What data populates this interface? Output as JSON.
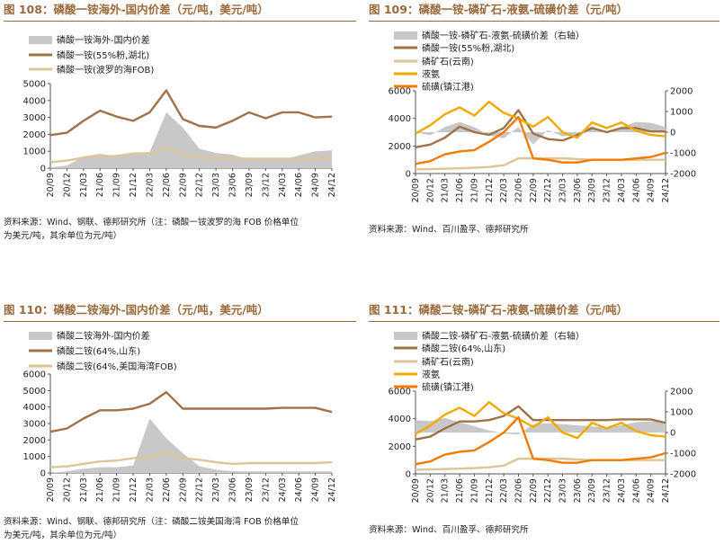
{
  "colors": {
    "gray": "#C8C8C8",
    "brown": "#A07248",
    "tan": "#DEC598",
    "gold": "#F2A900",
    "orange": "#F47B00",
    "title": "#9B6A3C",
    "axis": "#555555"
  },
  "panels": [
    {
      "title": "图 108：磷酸一铵海外-国内价差（元/吨，美元/吨）",
      "note": [
        "资料来源：Wind、钢联、德邦研究所（注：磷酸一铵波罗的海 FOB 价格单位",
        "为美元/吨，其余单位为元/吨）"
      ],
      "chart_data": {
        "type": "area+line",
        "x": [
          "20/09",
          "20/12",
          "21/03",
          "21/06",
          "21/09",
          "21/12",
          "22/03",
          "22/06",
          "22/09",
          "22/12",
          "23/03",
          "23/06",
          "23/09",
          "23/12",
          "24/03",
          "24/06",
          "24/09",
          "24/12"
        ],
        "ylim": [
          0,
          5000
        ],
        "yticks": [
          0,
          1000,
          2000,
          3000,
          4000,
          5000
        ],
        "series": [
          {
            "name": "磷酸一铵海外-国内价差",
            "kind": "area",
            "color": "#C8C8C8",
            "axis": "left",
            "values": [
              50,
              150,
              700,
              850,
              700,
              900,
              950,
              3300,
              2400,
              1150,
              900,
              800,
              500,
              600,
              500,
              750,
              1000,
              1050
            ]
          },
          {
            "name": "磷酸一铵(55%粉,湖北)",
            "kind": "line",
            "color": "#A07248",
            "axis": "left",
            "values": [
              1950,
              2100,
              2800,
              3400,
              3050,
              2800,
              3300,
              4600,
              2900,
              2500,
              2400,
              2800,
              3300,
              2950,
              3300,
              3300,
              3000,
              3050
            ]
          },
          {
            "name": "磷酸一铵(波罗的海FOB)",
            "kind": "line",
            "color": "#DEC598",
            "axis": "left",
            "values": [
              350,
              450,
              620,
              680,
              720,
              860,
              880,
              1230,
              820,
              650,
              560,
              600,
              560,
              560,
              560,
              560,
              560,
              580
            ]
          }
        ]
      }
    },
    {
      "title": "图 109：磷酸一铵-磷矿石-液氨-硫磺价差（元/吨）",
      "note": [
        "资料来源：Wind、百川盈孚、德邦研究所"
      ],
      "chart_data": {
        "type": "area+line",
        "x": [
          "20/09",
          "20/12",
          "21/03",
          "21/06",
          "21/09",
          "21/12",
          "22/03",
          "22/06",
          "22/09",
          "22/12",
          "23/03",
          "23/06",
          "23/09",
          "23/12",
          "24/03",
          "24/06",
          "24/09",
          "24/12"
        ],
        "ylim": [
          0,
          6000
        ],
        "yticks": [
          0,
          2000,
          4000,
          6000
        ],
        "y2lim": [
          -2000,
          2000
        ],
        "y2ticks": [
          -2000,
          -1000,
          0,
          1000,
          2000
        ],
        "series": [
          {
            "name": "磷酸一铵-磷矿石-液氨-硫磺价差（右轴）",
            "kind": "area",
            "color": "#C8C8C8",
            "axis": "right",
            "values": [
              0,
              -150,
              250,
              500,
              250,
              -150,
              -300,
              250,
              -600,
              100,
              -200,
              -100,
              300,
              -50,
              250,
              500,
              450,
              250
            ]
          },
          {
            "name": "磷酸一铵(55%粉,湖北)",
            "kind": "line",
            "color": "#A07248",
            "axis": "left",
            "values": [
              1900,
              2100,
              2600,
              3400,
              3000,
              2800,
              3300,
              4600,
              2900,
              2500,
              2400,
              2800,
              3300,
              3000,
              3300,
              3300,
              3050,
              3050
            ]
          },
          {
            "name": "磷矿石(云南)",
            "kind": "line",
            "color": "#DEC598",
            "axis": "left",
            "values": [
              300,
              320,
              350,
              380,
              420,
              480,
              600,
              1100,
              1100,
              1100,
              1100,
              1050,
              1000,
              1000,
              1000,
              1000,
              1000,
              1000
            ]
          },
          {
            "name": "液氨",
            "kind": "line",
            "color": "#F2A900",
            "axis": "left",
            "values": [
              2900,
              3500,
              4300,
              4800,
              4200,
              5200,
              4400,
              4000,
              3400,
              4100,
              3000,
              2600,
              3700,
              3300,
              3700,
              3100,
              2800,
              2700
            ]
          },
          {
            "name": "硫磺(镇江港)",
            "kind": "line",
            "color": "#F47B00",
            "axis": "left",
            "values": [
              700,
              900,
              1400,
              1600,
              1700,
              2300,
              3000,
              4100,
              1100,
              1000,
              800,
              800,
              1000,
              1000,
              1000,
              1100,
              1200,
              1500
            ]
          }
        ]
      }
    },
    {
      "title": "图 110：磷酸二铵海外-国内价差（元/吨，美元/吨）",
      "note": [
        "资料来源：Wind、钢联、德邦研究所（注：磷酸二铵美国海湾 FOB 价格单位",
        "为美元/吨，其余单位为元/吨）"
      ],
      "chart_data": {
        "type": "area+line",
        "x": [
          "20/09",
          "20/12",
          "21/03",
          "21/06",
          "21/09",
          "21/12",
          "22/03",
          "22/06",
          "22/09",
          "22/12",
          "23/03",
          "23/06",
          "23/09",
          "23/12",
          "24/03",
          "24/06",
          "24/09",
          "24/12"
        ],
        "ylim": [
          0,
          6000
        ],
        "yticks": [
          0,
          1000,
          2000,
          3000,
          4000,
          5000,
          6000
        ],
        "series": [
          {
            "name": "磷酸二铵海外-国内价差",
            "kind": "area",
            "color": "#C8C8C8",
            "axis": "left",
            "values": [
              0,
              100,
              250,
              350,
              350,
              450,
              3300,
              2100,
              1200,
              400,
              200,
              100,
              100,
              100,
              100,
              100,
              100,
              100
            ]
          },
          {
            "name": "磷酸二铵(64%,山东)",
            "kind": "line",
            "color": "#A07248",
            "axis": "left",
            "values": [
              2500,
              2700,
              3300,
              3800,
              3800,
              3900,
              4200,
              4900,
              3900,
              3900,
              3900,
              3900,
              3900,
              3900,
              3950,
              3950,
              3950,
              3700
            ]
          },
          {
            "name": "磷酸二铵(64%,美国海湾FOB)",
            "kind": "line",
            "color": "#DEC598",
            "axis": "left",
            "values": [
              350,
              400,
              550,
              700,
              750,
              900,
              950,
              1300,
              900,
              800,
              650,
              550,
              600,
              600,
              600,
              600,
              600,
              650
            ]
          }
        ]
      }
    },
    {
      "title": "图 111：磷酸二铵-磷矿石-液氨-硫磺价差（元/吨）",
      "note": [
        "资料来源：Wind、百川盈孚、德邦研究所"
      ],
      "chart_data": {
        "type": "area+line",
        "x": [
          "20/09",
          "20/12",
          "21/03",
          "21/06",
          "21/09",
          "21/12",
          "22/03",
          "22/06",
          "22/09",
          "22/12",
          "23/03",
          "23/06",
          "23/09",
          "23/12",
          "24/03",
          "24/06",
          "24/09",
          "24/12"
        ],
        "ylim": [
          0,
          6000
        ],
        "yticks": [
          0,
          2000,
          4000,
          6000
        ],
        "y2lim": [
          -2000,
          2000
        ],
        "y2ticks": [
          -2000,
          -1000,
          0,
          1000,
          2000
        ],
        "series": [
          {
            "name": "磷酸二铵-磷矿石-液氨-硫磺价差（右轴）",
            "kind": "area",
            "color": "#C8C8C8",
            "axis": "right",
            "values": [
              600,
              550,
              700,
              500,
              300,
              100,
              -50,
              -100,
              400,
              450,
              400,
              350,
              300,
              250,
              350,
              500,
              550,
              500
            ]
          },
          {
            "name": "磷酸二铵(64%,山东)",
            "kind": "line",
            "color": "#A07248",
            "axis": "left",
            "values": [
              2500,
              2700,
              3300,
              3800,
              3800,
              3900,
              4200,
              4900,
              3900,
              3900,
              3900,
              3900,
              3900,
              3900,
              3950,
              3950,
              3950,
              3700
            ]
          },
          {
            "name": "磷矿石(云南)",
            "kind": "line",
            "color": "#DEC598",
            "axis": "left",
            "values": [
              300,
              320,
              350,
              380,
              420,
              480,
              600,
              1100,
              1100,
              1100,
              1100,
              1050,
              1000,
              1000,
              1000,
              1000,
              1000,
              1000
            ]
          },
          {
            "name": "液氨",
            "kind": "line",
            "color": "#F2A900",
            "axis": "left",
            "values": [
              2900,
              3500,
              4300,
              4800,
              4200,
              5200,
              4400,
              4000,
              3400,
              4100,
              3000,
              2600,
              3700,
              3300,
              3700,
              3100,
              2800,
              2700
            ]
          },
          {
            "name": "硫磺(镇江港)",
            "kind": "line",
            "color": "#F47B00",
            "axis": "left",
            "values": [
              700,
              900,
              1400,
              1600,
              1700,
              2300,
              3000,
              4100,
              1100,
              1000,
              800,
              800,
              1000,
              1000,
              1000,
              1100,
              1200,
              1500
            ]
          }
        ]
      }
    }
  ]
}
